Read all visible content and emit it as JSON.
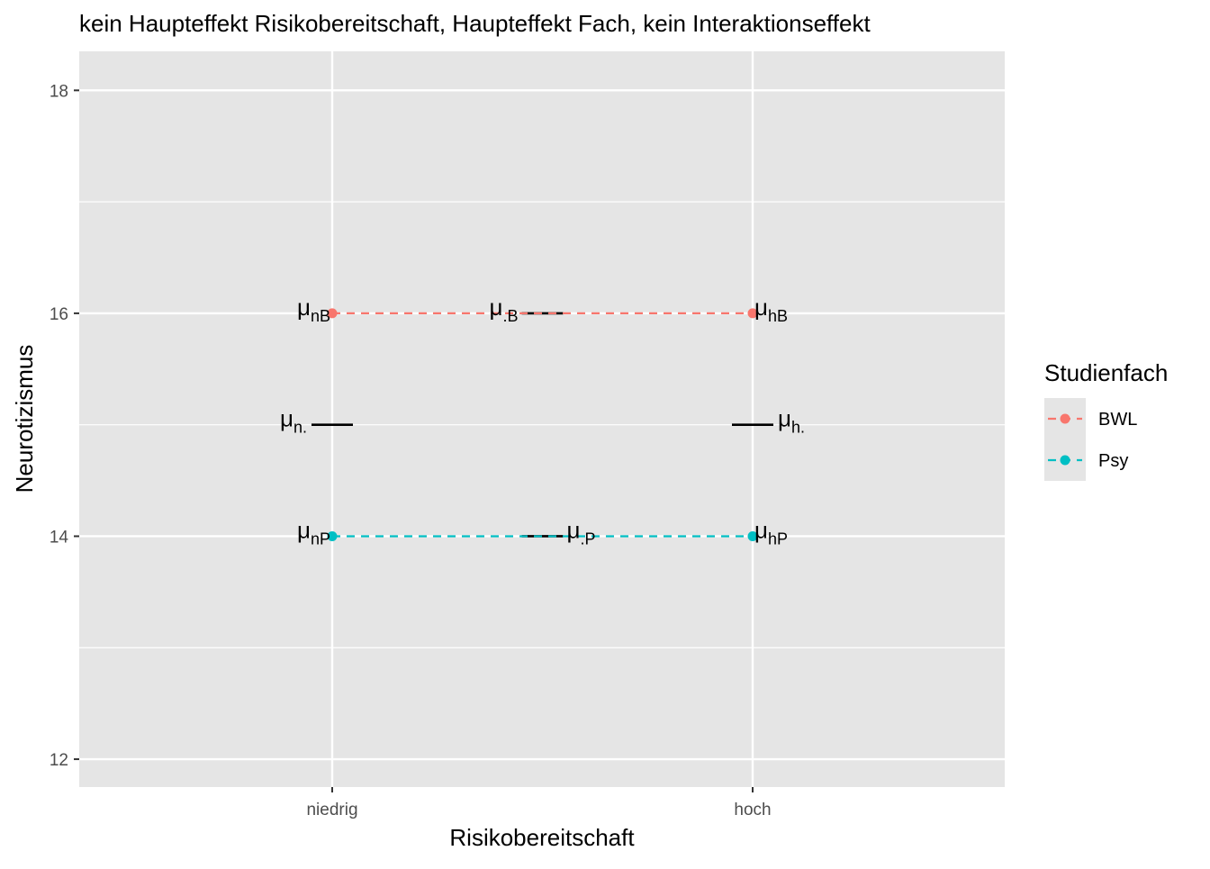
{
  "chart_data": {
    "type": "line",
    "title": "kein Haupteffekt Risikobereitschaft, Haupteffekt Fach, kein Interaktionseffekt",
    "xlabel": "Risikobereitschaft",
    "ylabel": "Neurotizismus",
    "categories": [
      "niedrig",
      "hoch"
    ],
    "ylim": [
      11.75,
      18.35
    ],
    "yticks": [
      12,
      14,
      16,
      18
    ],
    "grid": true,
    "series": [
      {
        "name": "BWL",
        "values": [
          16,
          16
        ],
        "color": "#f8766d",
        "linestyle": "dashed"
      },
      {
        "name": "Psy",
        "values": [
          14,
          14
        ],
        "color": "#00bfc4",
        "linestyle": "dashed"
      }
    ],
    "marginal_means": [
      {
        "label": "μ",
        "sub": "n.",
        "x": 1,
        "y": 15
      },
      {
        "label": "μ",
        "sub": "h.",
        "x": 2,
        "y": 15
      },
      {
        "label": "μ",
        "sub": ".B",
        "x": 1.5,
        "y": 16
      },
      {
        "label": "μ",
        "sub": ".P",
        "x": 1.5,
        "y": 14
      }
    ],
    "point_labels": [
      {
        "label": "μ",
        "sub": "nB",
        "x": 1,
        "y": 16
      },
      {
        "label": "μ",
        "sub": "hB",
        "x": 2,
        "y": 16
      },
      {
        "label": "μ",
        "sub": "nP",
        "x": 1,
        "y": 14
      },
      {
        "label": "μ",
        "sub": "hP",
        "x": 2,
        "y": 14
      }
    ],
    "legend": {
      "title": "Studienfach",
      "position": "right"
    }
  }
}
